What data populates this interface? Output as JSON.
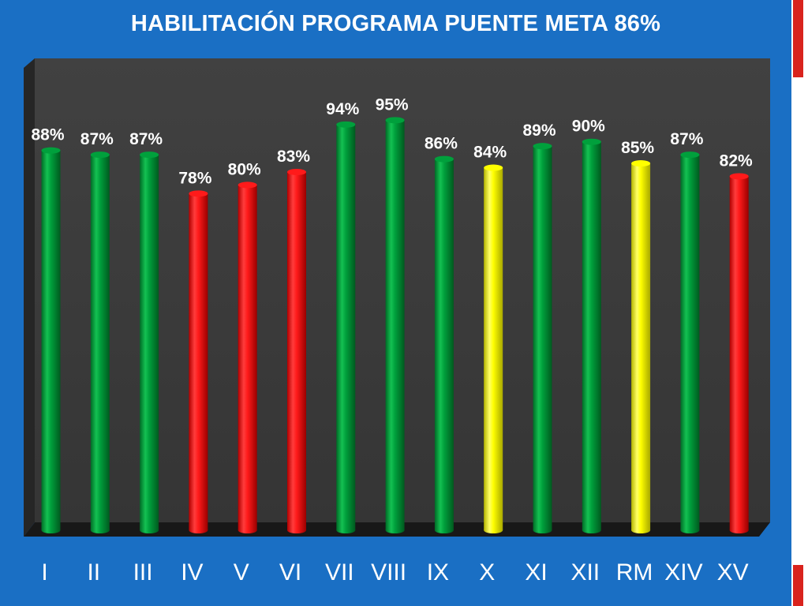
{
  "title": "HABILITACIÓN PROGRAMA PUENTE META 86%",
  "colors": {
    "frame": "#1a6fc4",
    "plot_back": "#3b3b3b",
    "green": "#00a03c",
    "red": "#ff1a1a",
    "yellow": "#ffff00",
    "accent": "#d9231d"
  },
  "chart_data": {
    "type": "bar",
    "style": "3d-cylinder",
    "title": "HABILITACIÓN PROGRAMA PUENTE META 86%",
    "categories": [
      "I",
      "II",
      "III",
      "IV",
      "V",
      "VI",
      "VII",
      "VIII",
      "IX",
      "X",
      "XI",
      "XII",
      "RM",
      "XIV",
      "XV"
    ],
    "values": [
      88,
      87,
      87,
      78,
      80,
      83,
      94,
      95,
      86,
      84,
      89,
      90,
      85,
      87,
      82
    ],
    "labels": [
      "88%",
      "87%",
      "87%",
      "78%",
      "80%",
      "83%",
      "94%",
      "95%",
      "86%",
      "84%",
      "89%",
      "90%",
      "85%",
      "87%",
      "82%"
    ],
    "bar_colors": [
      "green",
      "green",
      "green",
      "red",
      "red",
      "red",
      "green",
      "green",
      "green",
      "yellow",
      "green",
      "green",
      "yellow",
      "green",
      "red"
    ],
    "ylim": [
      0,
      100
    ],
    "grid": false,
    "legend": false
  }
}
